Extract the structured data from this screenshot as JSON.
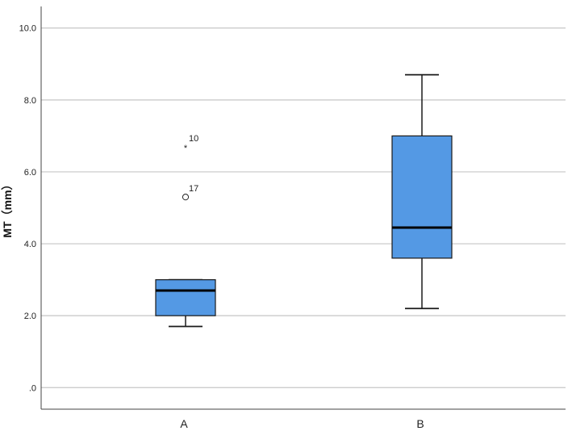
{
  "colors": {
    "box_fill": "#5499e4",
    "box_stroke": "#1a1a1a",
    "grid": "#c6c6c6",
    "axis": "#444444"
  },
  "chart_data": {
    "type": "boxplot",
    "ylabel": "MT（mm）",
    "ylim": [
      -0.6,
      10.6
    ],
    "yticks": [
      0,
      2,
      4,
      6,
      8,
      10
    ],
    "ytick_labels": [
      ".0",
      "2.0",
      "4.0",
      "6.0",
      "8.0",
      "10.0"
    ],
    "grid": true,
    "categories": [
      "A",
      "B"
    ],
    "boxes": [
      {
        "category": "A",
        "min": 1.7,
        "q1": 2.0,
        "median": 2.7,
        "q3": 3.0,
        "max": 3.0,
        "outliers": [
          {
            "value": 5.3,
            "label": "17",
            "marker": "circle"
          },
          {
            "value": 6.7,
            "label": "10",
            "marker": "star"
          }
        ]
      },
      {
        "category": "B",
        "min": 2.2,
        "q1": 3.6,
        "median": 4.45,
        "q3": 7.0,
        "max": 8.7,
        "outliers": []
      }
    ]
  }
}
